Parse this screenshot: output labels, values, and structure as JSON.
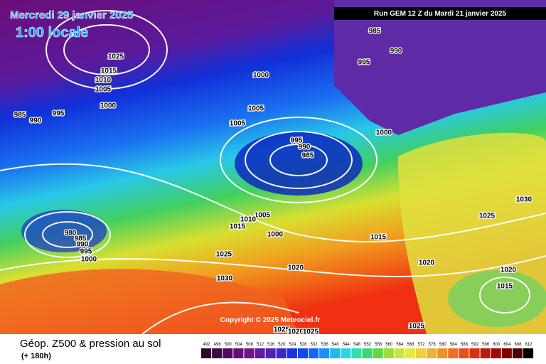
{
  "header": {
    "date": "Mercredi 29 janvier 2025",
    "time": "1:00 locale",
    "run": "Run GEM 12 Z du Mardi 21 janvier 2025"
  },
  "copyright": "Copyright © 2025 Meteociel.fr",
  "footer": {
    "title": "Géop. Z500 & pression au sol",
    "lead": "(+ 180h)"
  },
  "isobar_labels": [
    "985",
    "990",
    "995",
    "1025",
    "1015",
    "1010",
    "1005",
    "1000",
    "1000",
    "1005",
    "1005",
    "985",
    "990",
    "995",
    "1000",
    "995",
    "990",
    "985",
    "1005",
    "1010",
    "1015",
    "1000",
    "980",
    "985",
    "990",
    "995",
    "1000",
    "1025",
    "1030",
    "1020",
    "1015",
    "1020",
    "1025",
    "1030",
    "1020",
    "1015",
    "1025",
    "1025",
    "1020",
    "1025"
  ],
  "colorbar": {
    "labels": [
      492,
      496,
      500,
      504,
      508,
      512,
      516,
      520,
      524,
      528,
      532,
      536,
      540,
      544,
      548,
      552,
      556,
      560,
      564,
      568,
      572,
      576,
      580,
      584,
      588,
      592,
      596,
      600,
      604,
      608,
      612
    ]
  }
}
